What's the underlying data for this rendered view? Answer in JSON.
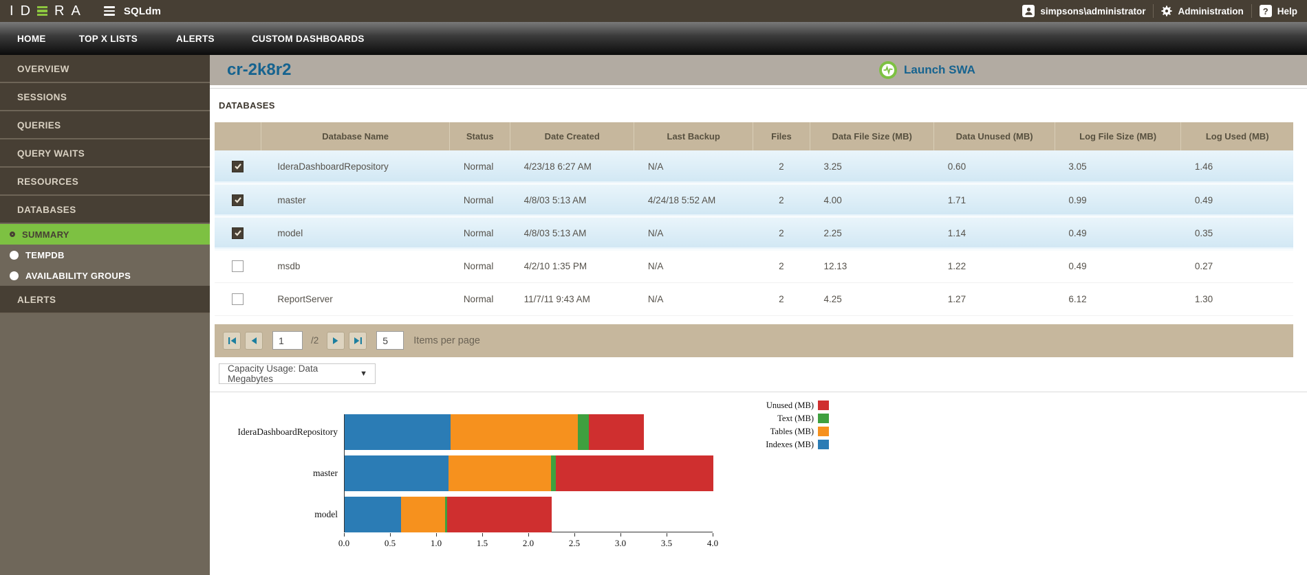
{
  "topbar": {
    "brand": "IDERA",
    "app_name": "SQLdm",
    "user": "simpsons\\administrator",
    "admin_label": "Administration",
    "help_label": "Help"
  },
  "nav": {
    "items": [
      "HOME",
      "TOP X LISTS",
      "ALERTS",
      "CUSTOM DASHBOARDS"
    ]
  },
  "sidebar": {
    "items": [
      {
        "label": "OVERVIEW"
      },
      {
        "label": "SESSIONS"
      },
      {
        "label": "QUERIES"
      },
      {
        "label": "QUERY WAITS"
      },
      {
        "label": "RESOURCES"
      },
      {
        "label": "DATABASES",
        "children": [
          {
            "label": "SUMMARY",
            "selected": true
          },
          {
            "label": "TEMPDB",
            "selected": false
          },
          {
            "label": "AVAILABILITY GROUPS",
            "selected": false
          }
        ]
      },
      {
        "label": "ALERTS"
      }
    ]
  },
  "header": {
    "server_name": "cr-2k8r2",
    "launch_swa_label": "Launch SWA"
  },
  "section_title": "DATABASES",
  "table": {
    "columns": [
      "",
      "Database Name",
      "Status",
      "Date Created",
      "Last Backup",
      "Files",
      "Data File Size (MB)",
      "Data Unused (MB)",
      "Log File Size (MB)",
      "Log Used (MB)"
    ],
    "rows": [
      {
        "checked": true,
        "cells": [
          "IderaDashboardRepository",
          "Normal",
          "4/23/18 6:27 AM",
          "N/A",
          "2",
          "3.25",
          "0.60",
          "3.05",
          "1.46"
        ]
      },
      {
        "checked": true,
        "cells": [
          "master",
          "Normal",
          "4/8/03 5:13 AM",
          "4/24/18 5:52 AM",
          "2",
          "4.00",
          "1.71",
          "0.99",
          "0.49"
        ]
      },
      {
        "checked": true,
        "cells": [
          "model",
          "Normal",
          "4/8/03 5:13 AM",
          "N/A",
          "2",
          "2.25",
          "1.14",
          "0.49",
          "0.35"
        ]
      },
      {
        "checked": false,
        "cells": [
          "msdb",
          "Normal",
          "4/2/10 1:35 PM",
          "N/A",
          "2",
          "12.13",
          "1.22",
          "0.49",
          "0.27"
        ]
      },
      {
        "checked": false,
        "cells": [
          "ReportServer",
          "Normal",
          "11/7/11 9:43 AM",
          "N/A",
          "2",
          "4.25",
          "1.27",
          "6.12",
          "1.30"
        ]
      }
    ]
  },
  "pagination": {
    "current_page": "1",
    "page_count_label": "/2",
    "items_per_page": "5",
    "items_per_page_label": "Items per page"
  },
  "chart_controls": {
    "selected_option": "Capacity Usage: Data Megabytes"
  },
  "chart_data": {
    "type": "bar",
    "orientation": "horizontal",
    "stacked": true,
    "title": "Capacity Usage: Data Megabytes",
    "categories": [
      "IderaDashboardRepository",
      "master",
      "model"
    ],
    "series": [
      {
        "name": "Indexes (MB)",
        "color": "#2b7cb5",
        "values": [
          1.15,
          1.13,
          0.61
        ]
      },
      {
        "name": "Tables (MB)",
        "color": "#f6911e",
        "values": [
          1.38,
          1.11,
          0.48
        ]
      },
      {
        "name": "Text (MB)",
        "color": "#3fa03f",
        "values": [
          0.12,
          0.05,
          0.02
        ]
      },
      {
        "name": "Unused (MB)",
        "color": "#cf2f2f",
        "values": [
          0.6,
          1.71,
          1.14
        ]
      }
    ],
    "legend_order": [
      "Unused (MB)",
      "Text (MB)",
      "Tables (MB)",
      "Indexes (MB)"
    ],
    "xlim": [
      0,
      4.0
    ],
    "xticks": [
      0.0,
      0.5,
      1.0,
      1.5,
      2.0,
      2.5,
      3.0,
      3.5,
      4.0
    ],
    "legend_position": "right",
    "grid": false
  },
  "colors": {
    "topbar_bg": "#473f34",
    "sidebar_selected": "#7dc142",
    "accent_blue": "#16638f",
    "table_header_bg": "#c6b79d",
    "selected_row_bg": "#d9ecf7",
    "brand_green": "#8dc63f"
  }
}
